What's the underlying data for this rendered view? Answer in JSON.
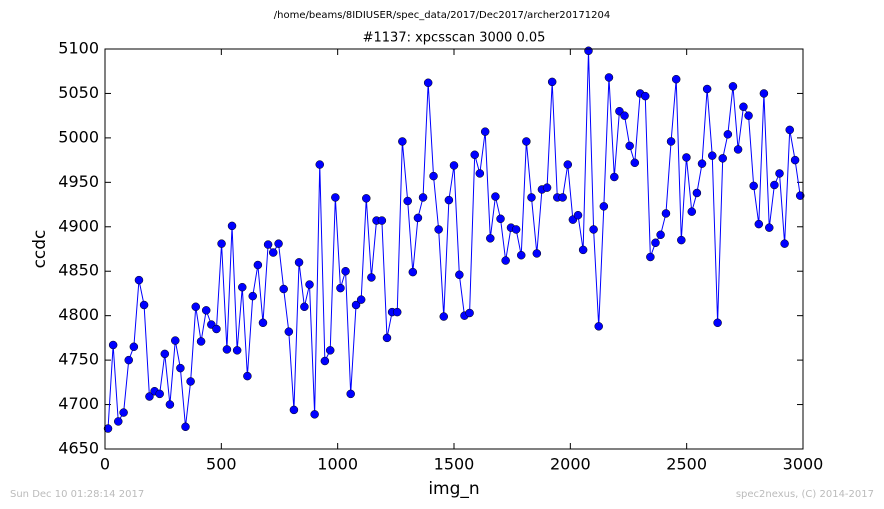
{
  "chart_data": {
    "type": "line",
    "suptitle": "/home/beams/8IDIUSER/spec_data/2017/Dec2017/archer20171204",
    "title": "#1137: xpcsscan 3000 0.05",
    "xlabel": "img_n",
    "ylabel": "ccdc",
    "footer_left": "Sun Dec 10 01:28:14 2017",
    "footer_right": "spec2nexus, (C) 2014-2017",
    "xlim": [
      0,
      3000
    ],
    "xticks": [
      0,
      500,
      1000,
      1500,
      2000,
      2500,
      3000
    ],
    "ylim": [
      4650,
      5100
    ],
    "yticks": [
      4650,
      4700,
      4750,
      4800,
      4850,
      4900,
      4950,
      5000,
      5050,
      5100
    ],
    "grid": false,
    "series": [
      {
        "name": "ccdc",
        "color": "#0000ff",
        "x": [
          13,
          35,
          57,
          80,
          102,
          124,
          146,
          168,
          191,
          213,
          235,
          257,
          279,
          302,
          324,
          346,
          368,
          390,
          413,
          435,
          457,
          479,
          501,
          524,
          546,
          568,
          590,
          612,
          635,
          657,
          679,
          701,
          723,
          746,
          768,
          790,
          812,
          834,
          857,
          879,
          901,
          923,
          945,
          968,
          990,
          1012,
          1034,
          1056,
          1079,
          1101,
          1123,
          1145,
          1167,
          1190,
          1212,
          1234,
          1256,
          1278,
          1301,
          1323,
          1345,
          1367,
          1389,
          1412,
          1434,
          1456,
          1478,
          1500,
          1523,
          1545,
          1567,
          1589,
          1611,
          1634,
          1656,
          1678,
          1700,
          1722,
          1745,
          1767,
          1789,
          1811,
          1833,
          1856,
          1878,
          1900,
          1922,
          1944,
          1967,
          1989,
          2011,
          2033,
          2055,
          2078,
          2100,
          2122,
          2144,
          2166,
          2189,
          2211,
          2233,
          2255,
          2277,
          2300,
          2322,
          2344,
          2366,
          2388,
          2411,
          2433,
          2455,
          2477,
          2499,
          2522,
          2544,
          2566,
          2588,
          2610,
          2633,
          2655,
          2677,
          2699,
          2721,
          2744,
          2766,
          2788,
          2810,
          2832,
          2855,
          2877,
          2899,
          2921,
          2943,
          2966,
          2988
        ],
        "values": [
          4673,
          4767,
          4681,
          4691,
          4750,
          4765,
          4840,
          4812,
          4709,
          4715,
          4712,
          4757,
          4700,
          4772,
          4741,
          4675,
          4726,
          4810,
          4771,
          4806,
          4790,
          4785,
          4881,
          4762,
          4901,
          4761,
          4832,
          4732,
          4822,
          4857,
          4792,
          4880,
          4871,
          4881,
          4830,
          4782,
          4694,
          4860,
          4810,
          4835,
          4689,
          4970,
          4749,
          4761,
          4933,
          4831,
          4850,
          4712,
          4812,
          4818,
          4932,
          4843,
          4907,
          4907,
          4775,
          4804,
          4804,
          4996,
          4929,
          4849,
          4910,
          4933,
          5062,
          4957,
          4897,
          4799,
          4930,
          4969,
          4846,
          4800,
          4803,
          4981,
          4960,
          5007,
          4887,
          4934,
          4909,
          4862,
          4899,
          4897,
          4868,
          4996,
          4933,
          4870,
          4942,
          4944,
          5063,
          4933,
          4933,
          4970,
          4908,
          4913,
          4874,
          5098,
          4897,
          4788,
          4923,
          5068,
          4956,
          5030,
          5025,
          4991,
          4972,
          5050,
          5047,
          4866,
          4882,
          4891,
          4915,
          4996,
          5066,
          4885,
          4978,
          4917,
          4938,
          4971,
          5055,
          4980,
          4792,
          4977,
          5004,
          5058,
          4987,
          5035,
          5025,
          4946,
          4903,
          5050,
          4899,
          4947,
          4960,
          4881,
          5009,
          4975,
          4935
        ]
      }
    ]
  }
}
